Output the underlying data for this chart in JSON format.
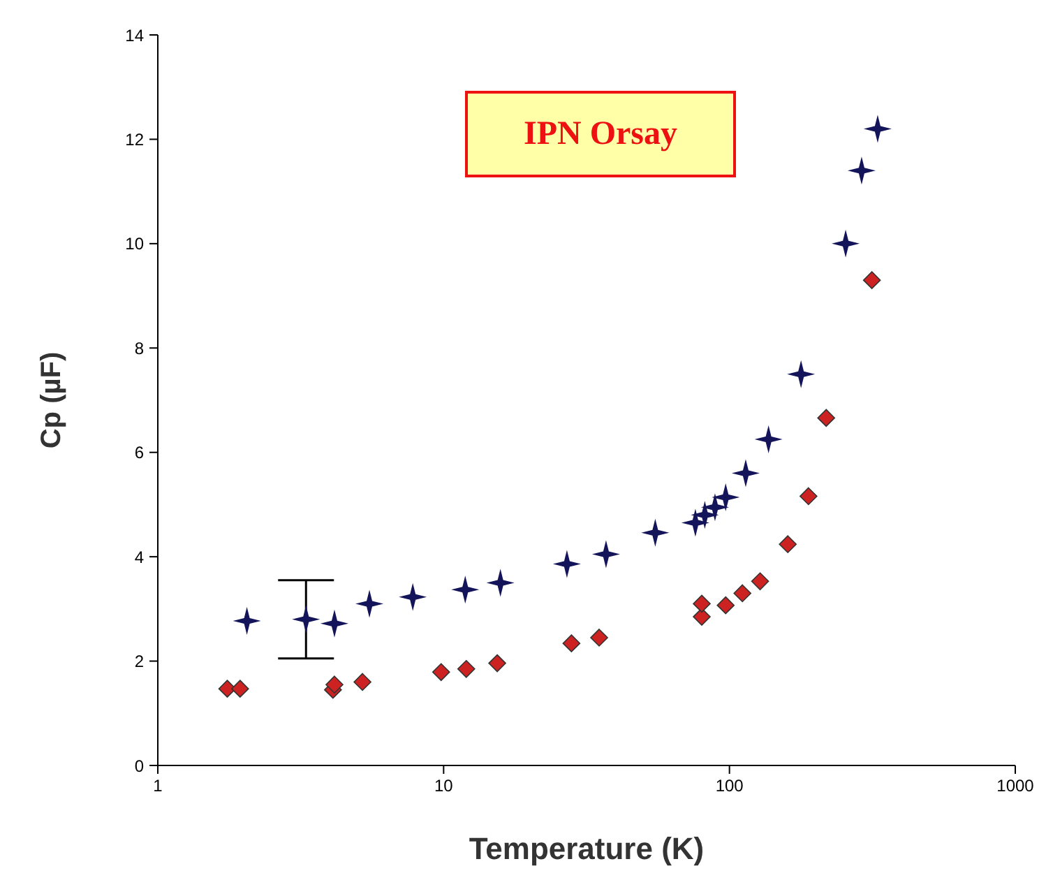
{
  "chart_data": {
    "type": "scatter",
    "xlabel": "Temperature (K)",
    "ylabel": "Cp (µF)",
    "annotations": [
      "IPN Orsay"
    ],
    "log": "x",
    "xlim": [
      1,
      1000
    ],
    "xticks": [
      1,
      10,
      100,
      1000
    ],
    "ylim": [
      0,
      14
    ],
    "yticks": [
      0,
      2,
      4,
      6,
      8,
      10,
      12,
      14
    ],
    "series": [
      {
        "color": "#cc2222",
        "marker": "diamond",
        "x": [
          1.75,
          1.94,
          4.1,
          4.15,
          5.2,
          9.8,
          12,
          15.4,
          28,
          35,
          80,
          80,
          97,
          111,
          128,
          160,
          189,
          218,
          315
        ],
        "values": [
          1.47,
          1.47,
          1.45,
          1.55,
          1.6,
          1.79,
          1.85,
          1.96,
          2.34,
          2.45,
          2.85,
          3.1,
          3.07,
          3.3,
          3.53,
          4.24,
          5.16,
          6.66,
          9.3
        ]
      },
      {
        "color": "#14145a",
        "marker": "star",
        "x": [
          2.05,
          3.3,
          4.15,
          5.5,
          7.8,
          11.9,
          15.8,
          27,
          37,
          55,
          76,
          82,
          89,
          97,
          114,
          137,
          178,
          255,
          290,
          330
        ],
        "values": [
          2.77,
          2.8,
          2.72,
          3.1,
          3.23,
          3.37,
          3.5,
          3.86,
          4.05,
          4.46,
          4.65,
          4.8,
          4.95,
          5.14,
          5.6,
          6.25,
          7.5,
          10,
          11.4,
          12.2
        ],
        "errors": [
          null,
          0.75,
          null,
          null,
          null,
          null,
          null,
          null,
          null,
          null,
          null,
          null,
          null,
          null,
          null,
          null,
          null,
          null,
          null,
          null
        ]
      }
    ]
  }
}
